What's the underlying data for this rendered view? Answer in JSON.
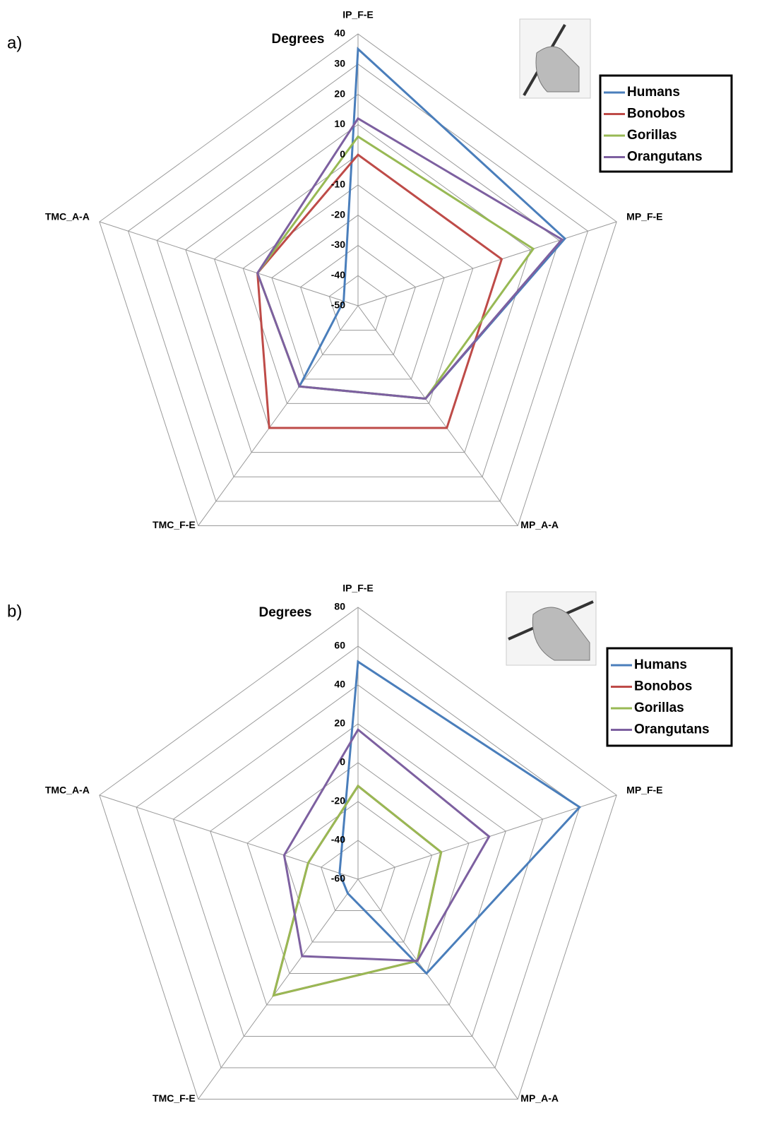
{
  "chart_data": [
    {
      "type": "radar",
      "label": "a)",
      "axis_title": "Degrees",
      "categories": [
        "IP_F-E",
        "MP_F-E",
        "MP_A-A",
        "TMC_F-E",
        "TMC_A-A"
      ],
      "ylim": [
        -50,
        40
      ],
      "yticks": [
        -50,
        -40,
        -30,
        -20,
        -10,
        0,
        10,
        20,
        30,
        40
      ],
      "series": [
        {
          "name": "Humans",
          "color": "#4a7ebb",
          "values": [
            35,
            22,
            -12,
            -17,
            -45
          ]
        },
        {
          "name": "Bonobos",
          "color": "#be4b48",
          "values": [
            0,
            0,
            0,
            0,
            -15
          ]
        },
        {
          "name": "Gorillas",
          "color": "#98b954",
          "values": [
            6,
            11,
            -12,
            -17,
            -15
          ]
        },
        {
          "name": "Orangutans",
          "color": "#7d60a0",
          "values": [
            12,
            21,
            -12,
            -17,
            -15
          ]
        }
      ]
    },
    {
      "type": "radar",
      "label": "b)",
      "axis_title": "Degrees",
      "categories": [
        "IP_F-E",
        "MP_F-E",
        "MP_A-A",
        "TMC_F-E",
        "TMC_A-A"
      ],
      "ylim": [
        -60,
        80
      ],
      "yticks": [
        -60,
        -40,
        -20,
        0,
        20,
        40,
        60,
        80
      ],
      "series": [
        {
          "name": "Humans",
          "color": "#4a7ebb",
          "values": [
            52,
            60,
            0,
            -51,
            -50
          ]
        },
        {
          "name": "Bonobos",
          "color": "#be4b48",
          "values": [
            -12,
            -15,
            -8,
            14,
            -33
          ]
        },
        {
          "name": "Gorillas",
          "color": "#98b954",
          "values": [
            -12,
            -15,
            -8,
            14,
            -33
          ]
        },
        {
          "name": "Orangutans",
          "color": "#7d60a0",
          "values": [
            17,
            11,
            -8,
            -11,
            -20
          ]
        }
      ]
    }
  ]
}
